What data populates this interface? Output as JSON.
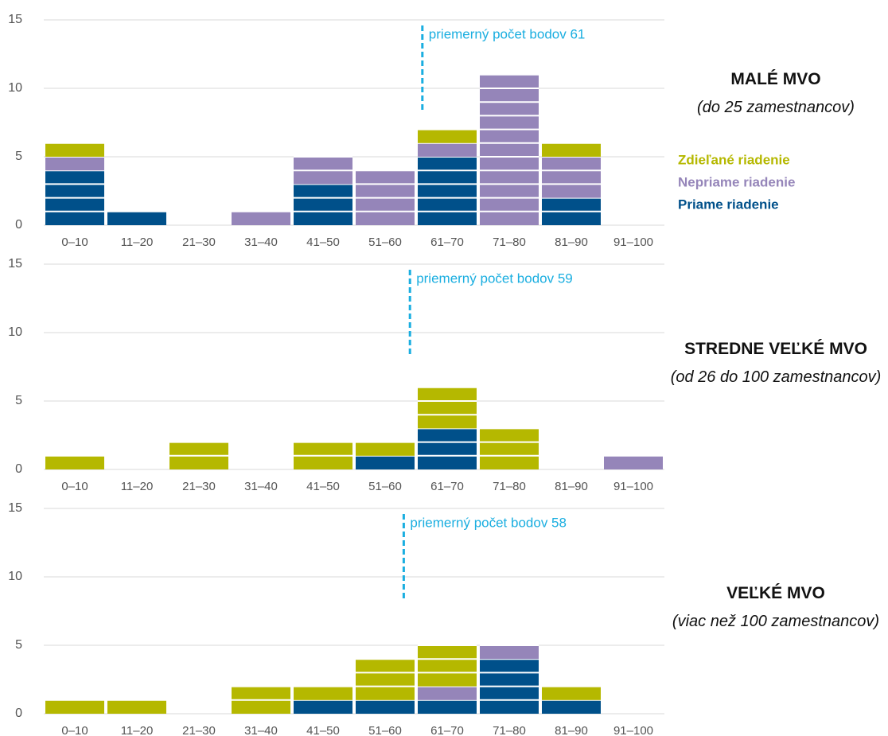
{
  "chart_data": [
    {
      "type": "bar",
      "stacked": true,
      "title": "MALÉ MVO",
      "subtitle": "(do 25 zamestnancov)",
      "categories": [
        "0–10",
        "11–20",
        "21–30",
        "31–40",
        "41–50",
        "51–60",
        "61–70",
        "71–80",
        "81–90",
        "91–100"
      ],
      "series": [
        {
          "name": "Priame riadenie",
          "color": "#00508a",
          "values": [
            4,
            1,
            0,
            0,
            3,
            0,
            5,
            0,
            2,
            0
          ]
        },
        {
          "name": "Nepriame riadenie",
          "color": "#9585b9",
          "values": [
            1,
            0,
            0,
            1,
            2,
            4,
            1,
            11,
            3,
            0
          ]
        },
        {
          "name": "Zdieľané riadenie",
          "color": "#b5b800",
          "values": [
            1,
            0,
            0,
            0,
            0,
            0,
            1,
            0,
            1,
            0
          ]
        }
      ],
      "annotation": {
        "text": "priemerný počet bodov 61",
        "x": 61,
        "color": "#1aaee0"
      },
      "xlim": [
        0,
        100
      ],
      "ylim": [
        0,
        15
      ],
      "yticks": [
        0,
        5,
        10,
        15
      ],
      "grid": true,
      "legend": "right"
    },
    {
      "type": "bar",
      "stacked": true,
      "title": "STREDNE VEĽKÉ MVO",
      "subtitle": "(od 26 do 100 zamestnancov)",
      "categories": [
        "0–10",
        "11–20",
        "21–30",
        "31–40",
        "41–50",
        "51–60",
        "61–70",
        "71–80",
        "81–90",
        "91–100"
      ],
      "series": [
        {
          "color": "#00508a",
          "values": [
            0,
            0,
            0,
            0,
            0,
            1,
            3,
            0,
            0,
            0
          ]
        },
        {
          "color": "#9585b9",
          "values": [
            0,
            0,
            0,
            0,
            0,
            0,
            0,
            0,
            0,
            1
          ]
        },
        {
          "color": "#b5b800",
          "values": [
            1,
            0,
            2,
            0,
            2,
            1,
            3,
            3,
            0,
            0
          ]
        }
      ],
      "annotation": {
        "text": "priemerný počet bodov 59",
        "x": 59,
        "color": "#1aaee0"
      },
      "xlim": [
        0,
        100
      ],
      "ylim": [
        0,
        15
      ],
      "yticks": [
        0,
        5,
        10,
        15
      ],
      "grid": true
    },
    {
      "type": "bar",
      "stacked": true,
      "title": "VEĽKÉ MVO",
      "subtitle": "(viac než 100 zamestnancov)",
      "categories": [
        "0–10",
        "11–20",
        "21–30",
        "31–40",
        "41–50",
        "51–60",
        "61–70",
        "71–80",
        "81–90",
        "91–100"
      ],
      "series": [
        {
          "color": "#00508a",
          "values": [
            0,
            0,
            0,
            0,
            1,
            1,
            1,
            4,
            1,
            0
          ]
        },
        {
          "color": "#9585b9",
          "values": [
            0,
            0,
            0,
            0,
            0,
            0,
            1,
            1,
            0,
            0
          ]
        },
        {
          "color": "#b5b800",
          "values": [
            1,
            1,
            0,
            2,
            1,
            3,
            3,
            0,
            1,
            0
          ]
        }
      ],
      "annotation": {
        "text": "priemerný počet bodov 58",
        "x": 58,
        "color": "#1aaee0"
      },
      "xlim": [
        0,
        100
      ],
      "ylim": [
        0,
        15
      ],
      "yticks": [
        0,
        5,
        10,
        15
      ],
      "grid": true
    }
  ]
}
